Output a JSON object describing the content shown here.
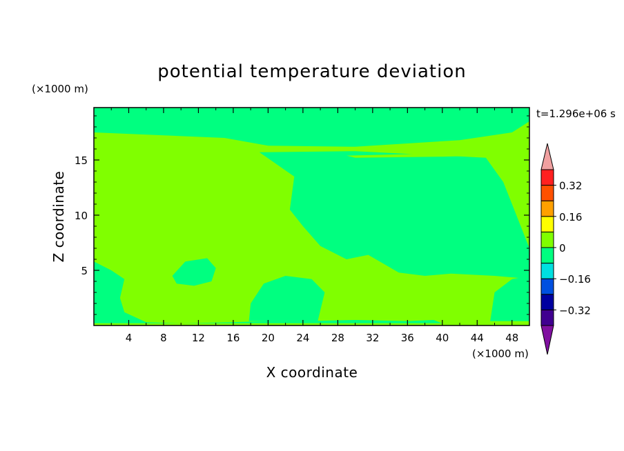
{
  "chart_data": {
    "type": "heatmap",
    "title": "potential temperature deviation",
    "xlabel": "X coordinate",
    "ylabel": "Z coordinate",
    "x_unit": "(×1000 m)",
    "y_unit": "(×1000 m)",
    "time_label": "t=1.296e+06 s",
    "xlim": [
      0,
      50
    ],
    "ylim": [
      0,
      19.75
    ],
    "x_ticks": [
      4,
      8,
      12,
      16,
      20,
      24,
      28,
      32,
      36,
      40,
      44,
      48
    ],
    "y_ticks": [
      5,
      10,
      15
    ],
    "colorbar": {
      "levels": [
        -0.4,
        -0.32,
        -0.24,
        -0.16,
        -0.08,
        0,
        0.08,
        0.16,
        0.24,
        0.32,
        0.4
      ],
      "tick_labels": [
        "0.32",
        "0.16",
        "0",
        "-0.16",
        "-0.32"
      ],
      "tick_values": [
        0.32,
        0.16,
        0,
        -0.16,
        -0.32
      ],
      "colors": [
        "#400090",
        "#0000a0",
        "#0050e0",
        "#00e0e0",
        "#00ff80",
        "#80ff00",
        "#ffff00",
        "#ffa000",
        "#ff5000",
        "#ff2020"
      ],
      "under_color": "#8010a0",
      "over_color": "#f0a0a0"
    },
    "fields": {
      "background_band": "0 to 0.08",
      "background_color": "#80ff00",
      "region_color": "#00ff80",
      "regions": [
        {
          "label": "-0.08 to 0",
          "points": [
            [
              0,
              19.75
            ],
            [
              50,
              19.75
            ],
            [
              50,
              18.5
            ],
            [
              48,
              17.5
            ],
            [
              42,
              16.8
            ],
            [
              30,
              16.2
            ],
            [
              20,
              16.3
            ],
            [
              15,
              17
            ],
            [
              0,
              17.5
            ]
          ]
        },
        {
          "label": "-0.08 to 0",
          "points": [
            [
              19,
              15.7
            ],
            [
              23,
              13.5
            ],
            [
              22.5,
              10.5
            ],
            [
              24,
              9
            ],
            [
              26,
              7.2
            ],
            [
              29,
              6
            ],
            [
              31.5,
              6.4
            ],
            [
              35,
              4.8
            ],
            [
              38,
              4.5
            ],
            [
              41,
              4.7
            ],
            [
              46,
              4.5
            ],
            [
              49,
              4.3
            ],
            [
              50,
              4.5
            ],
            [
              50,
              7
            ],
            [
              49,
              9
            ],
            [
              48,
              11
            ],
            [
              47,
              13
            ],
            [
              45,
              15.2
            ],
            [
              30,
              15.8
            ]
          ]
        },
        {
          "label": "-0.08 to 0",
          "points": [
            [
              0,
              5.8
            ],
            [
              2,
              5
            ],
            [
              3.5,
              4.2
            ],
            [
              3,
              2.5
            ],
            [
              3.5,
              1.2
            ],
            [
              6,
              0.3
            ],
            [
              10,
              0.2
            ],
            [
              16,
              0.3
            ],
            [
              20,
              0.4
            ],
            [
              24,
              0.4
            ],
            [
              30,
              0.5
            ],
            [
              36,
              0.4
            ],
            [
              39,
              0.5
            ],
            [
              40,
              0.2
            ],
            [
              0,
              0.2
            ]
          ]
        },
        {
          "label": "-0.08 to 0",
          "points": [
            [
              17.8,
              0.4
            ],
            [
              18,
              2
            ],
            [
              19.5,
              3.8
            ],
            [
              22,
              4.5
            ],
            [
              25,
              4.2
            ],
            [
              26.5,
              3
            ],
            [
              25.7,
              0.4
            ]
          ]
        },
        {
          "label": "-0.08 to 0",
          "points": [
            [
              9,
              4.5
            ],
            [
              10.5,
              5.8
            ],
            [
              13,
              6.1
            ],
            [
              14,
              5.2
            ],
            [
              13.5,
              4
            ],
            [
              11.5,
              3.6
            ],
            [
              9.5,
              3.8
            ]
          ]
        },
        {
          "label": "-0.08 to 0",
          "points": [
            [
              45.5,
              0.4
            ],
            [
              46,
              3
            ],
            [
              48,
              4.2
            ],
            [
              50,
              4.5
            ],
            [
              50,
              0.4
            ]
          ]
        },
        {
          "label": "-0.08 to 0",
          "points": [
            [
              31.5,
              19.75
            ],
            [
              32,
              18.5
            ],
            [
              34,
              18
            ],
            [
              36.5,
              18.5
            ],
            [
              37,
              19.75
            ]
          ]
        }
      ],
      "thin_bands": [
        {
          "label": "0 to 0.08",
          "points": [
            [
              0,
              15.7
            ],
            [
              10,
              15.8
            ],
            [
              19,
              15.6
            ],
            [
              10,
              15.2
            ],
            [
              0,
              15.1
            ]
          ]
        },
        {
          "label": "0 to 0.08",
          "points": [
            [
              29,
              15.4
            ],
            [
              40,
              15.6
            ],
            [
              50,
              15.5
            ],
            [
              40,
              15.3
            ],
            [
              30,
              15.2
            ]
          ]
        }
      ]
    }
  }
}
